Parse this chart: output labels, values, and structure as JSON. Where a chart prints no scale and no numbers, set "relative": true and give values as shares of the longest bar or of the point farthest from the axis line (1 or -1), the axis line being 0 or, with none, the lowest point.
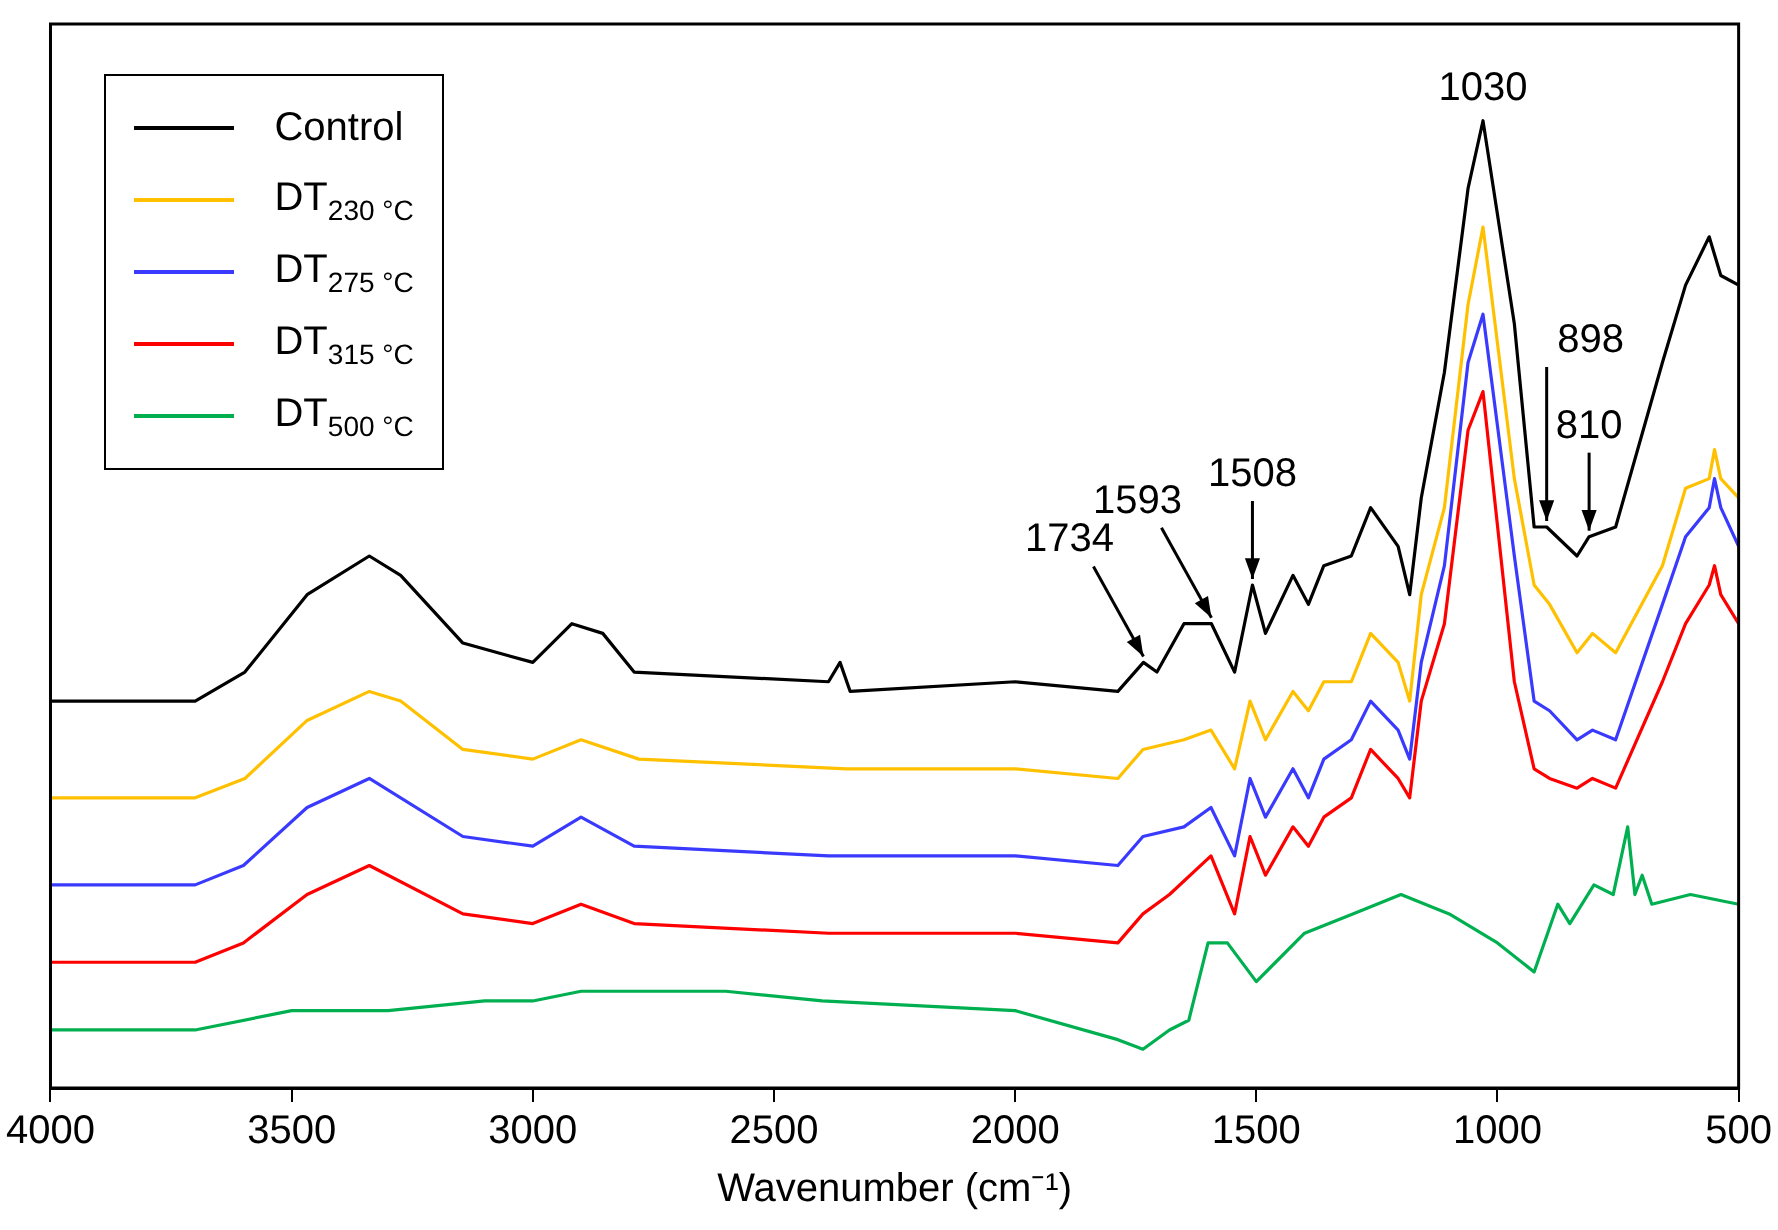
{
  "chart_data": {
    "type": "line",
    "relative": true,
    "xlabel": "Wavenumber (cm⁻¹)",
    "xlim": [
      4000,
      500
    ],
    "xticks": [
      4000,
      3500,
      3000,
      2500,
      2000,
      1500,
      1000,
      500
    ],
    "grid": false,
    "legend": "top left",
    "marker": "none",
    "line_style": "solid",
    "series": [
      {
        "name": "Control",
        "color": "#000000",
        "x": [
          4000,
          3700,
          3597,
          3468,
          3339,
          3274,
          3145,
          3000,
          2919,
          2855,
          2790,
          2387,
          2363,
          2342,
          2000,
          1787,
          1734,
          1706,
          1650,
          1593,
          1545,
          1508,
          1481,
          1424,
          1392,
          1360,
          1303,
          1263,
          1206,
          1182,
          1158,
          1110,
          1061,
          1030,
          965,
          924,
          898,
          835,
          810,
          755,
          658,
          610,
          561,
          537,
          500
        ],
        "values": [
          0.4,
          0.4,
          0.43,
          0.51,
          0.55,
          0.53,
          0.46,
          0.44,
          0.48,
          0.47,
          0.43,
          0.42,
          0.44,
          0.41,
          0.42,
          0.41,
          0.44,
          0.43,
          0.48,
          0.48,
          0.43,
          0.52,
          0.47,
          0.53,
          0.5,
          0.54,
          0.55,
          0.6,
          0.56,
          0.51,
          0.61,
          0.74,
          0.93,
          1,
          0.79,
          0.58,
          0.58,
          0.55,
          0.57,
          0.58,
          0.75,
          0.83,
          0.88,
          0.84,
          0.83
        ]
      },
      {
        "name": "DT$_{230 °C}$",
        "color": "#ffc000",
        "x": [
          4000,
          3700,
          3597,
          3468,
          3339,
          3274,
          3145,
          3000,
          2900,
          2780,
          2350,
          2000,
          1787,
          1735,
          1650,
          1594,
          1545,
          1513,
          1481,
          1424,
          1392,
          1360,
          1303,
          1263,
          1206,
          1182,
          1158,
          1110,
          1061,
          1030,
          965,
          924,
          892,
          835,
          803,
          755,
          658,
          610,
          561,
          550,
          537,
          500
        ],
        "values": [
          0.3,
          0.3,
          0.32,
          0.38,
          0.41,
          0.4,
          0.35,
          0.34,
          0.36,
          0.34,
          0.33,
          0.33,
          0.32,
          0.35,
          0.36,
          0.37,
          0.33,
          0.4,
          0.36,
          0.41,
          0.39,
          0.42,
          0.42,
          0.47,
          0.44,
          0.4,
          0.51,
          0.6,
          0.81,
          0.89,
          0.63,
          0.52,
          0.5,
          0.45,
          0.47,
          0.45,
          0.54,
          0.62,
          0.63,
          0.66,
          0.63,
          0.61
        ]
      },
      {
        "name": "DT$_{275 °C}$",
        "color": "#3a3aff",
        "x": [
          4000,
          3700,
          3600,
          3468,
          3339,
          3145,
          3000,
          2900,
          2790,
          2387,
          2000,
          1787,
          1735,
          1650,
          1594,
          1545,
          1513,
          1481,
          1424,
          1392,
          1360,
          1303,
          1263,
          1206,
          1182,
          1158,
          1110,
          1061,
          1030,
          965,
          924,
          892,
          835,
          803,
          755,
          658,
          610,
          561,
          550,
          537,
          500
        ],
        "values": [
          0.21,
          0.21,
          0.23,
          0.29,
          0.32,
          0.26,
          0.25,
          0.28,
          0.25,
          0.24,
          0.24,
          0.23,
          0.26,
          0.27,
          0.29,
          0.24,
          0.32,
          0.28,
          0.33,
          0.3,
          0.34,
          0.36,
          0.4,
          0.37,
          0.34,
          0.44,
          0.54,
          0.75,
          0.8,
          0.55,
          0.4,
          0.39,
          0.36,
          0.37,
          0.36,
          0.5,
          0.57,
          0.6,
          0.63,
          0.6,
          0.56
        ]
      },
      {
        "name": "DT$_{315 °C}$",
        "color": "#ff0000",
        "x": [
          4000,
          3700,
          3600,
          3468,
          3339,
          3145,
          3000,
          2900,
          2790,
          2387,
          2000,
          1787,
          1735,
          1680,
          1594,
          1545,
          1513,
          1481,
          1424,
          1392,
          1360,
          1303,
          1263,
          1206,
          1182,
          1158,
          1110,
          1061,
          1030,
          965,
          924,
          892,
          835,
          803,
          755,
          658,
          610,
          561,
          550,
          537,
          500
        ],
        "values": [
          0.13,
          0.13,
          0.15,
          0.2,
          0.23,
          0.18,
          0.17,
          0.19,
          0.17,
          0.16,
          0.16,
          0.15,
          0.18,
          0.2,
          0.24,
          0.18,
          0.26,
          0.22,
          0.27,
          0.25,
          0.28,
          0.3,
          0.35,
          0.32,
          0.3,
          0.4,
          0.48,
          0.68,
          0.72,
          0.42,
          0.33,
          0.32,
          0.31,
          0.32,
          0.31,
          0.42,
          0.48,
          0.52,
          0.54,
          0.51,
          0.48
        ]
      },
      {
        "name": "DT$_{500 °C}$",
        "color": "#00b050",
        "x": [
          4000,
          3700,
          3500,
          3300,
          3100,
          3000,
          2900,
          2600,
          2400,
          2000,
          1787,
          1735,
          1680,
          1640,
          1600,
          1560,
          1500,
          1400,
          1300,
          1200,
          1100,
          1000,
          924,
          875,
          850,
          800,
          760,
          730,
          715,
          700,
          680,
          600,
          500
        ],
        "values": [
          0.06,
          0.06,
          0.08,
          0.08,
          0.09,
          0.09,
          0.1,
          0.1,
          0.09,
          0.08,
          0.05,
          0.04,
          0.06,
          0.07,
          0.15,
          0.15,
          0.11,
          0.16,
          0.18,
          0.2,
          0.18,
          0.15,
          0.12,
          0.19,
          0.17,
          0.21,
          0.2,
          0.27,
          0.2,
          0.22,
          0.19,
          0.2,
          0.19
        ]
      }
    ],
    "annotations": [
      {
        "text": "1734",
        "x": 1734,
        "y": 0.44
      },
      {
        "text": "1593",
        "x": 1593,
        "y": 0.48
      },
      {
        "text": "1508",
        "x": 1508,
        "y": 0.52
      },
      {
        "text": "1030",
        "x": 1030,
        "y": 1
      },
      {
        "text": "898",
        "x": 898,
        "y": 0.58
      },
      {
        "text": "810",
        "x": 810,
        "y": 0.57
      }
    ]
  }
}
